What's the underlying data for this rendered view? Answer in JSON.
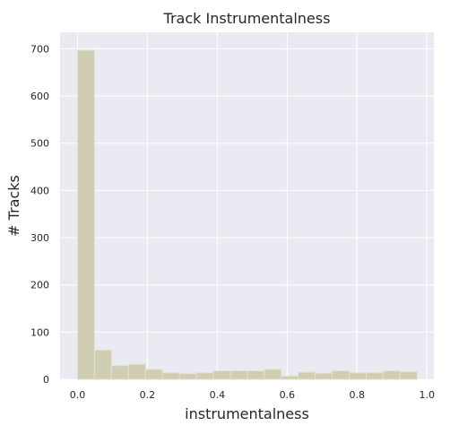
{
  "chart_data": {
    "type": "bar",
    "title": "Track Instrumentalness",
    "xlabel": "instrumentalness",
    "ylabel": "# Tracks",
    "xlim": [
      -0.05,
      1.02
    ],
    "ylim": [
      0,
      735
    ],
    "xticks": [
      0.0,
      0.2,
      0.4,
      0.6,
      0.8,
      1.0
    ],
    "xtick_labels": [
      "0.0",
      "0.2",
      "0.4",
      "0.6",
      "0.8",
      "1.0"
    ],
    "yticks": [
      0,
      100,
      200,
      300,
      400,
      500,
      600,
      700
    ],
    "ytick_labels": [
      "0",
      "100",
      "200",
      "300",
      "400",
      "500",
      "600",
      "700"
    ],
    "bin_edges": [
      0.0,
      0.0486,
      0.0972,
      0.1458,
      0.1944,
      0.243,
      0.2916,
      0.3402,
      0.3888,
      0.4374,
      0.486,
      0.5346,
      0.5832,
      0.6318,
      0.6804,
      0.729,
      0.7776,
      0.8262,
      0.8748,
      0.9234,
      0.972
    ],
    "values": [
      697,
      62,
      29,
      32,
      21,
      14,
      12,
      14,
      18,
      18,
      18,
      21,
      7,
      15,
      13,
      18,
      14,
      14,
      18,
      16
    ],
    "grid": true,
    "bar_color": "#cfcdb2",
    "bar_edge_color": "#e3e1cf",
    "plot_background": "#eaeaf2",
    "grid_color": "#ffffff"
  }
}
